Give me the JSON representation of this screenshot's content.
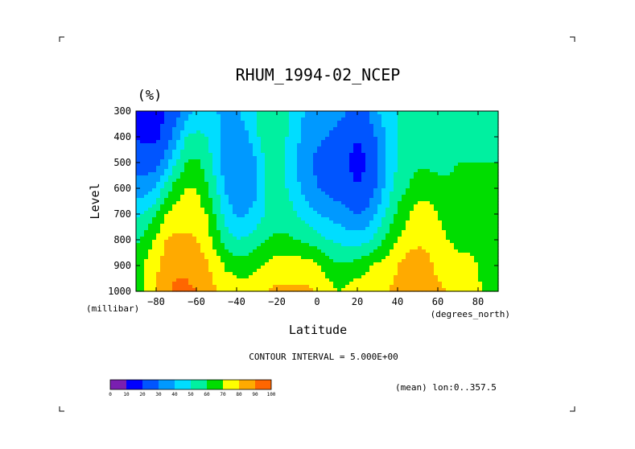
{
  "chart_data": {
    "type": "heatmap",
    "title": "RHUM_1994-02_NCEP",
    "units": "(%)",
    "xlabel": "Latitude",
    "xunits": "(degrees_north)",
    "ylabel": "Level",
    "yunits": "(millibar)",
    "xlim": [
      -90,
      90
    ],
    "ylim": [
      1000,
      300
    ],
    "x_ticks": [
      -80,
      -60,
      -40,
      -20,
      0,
      20,
      40,
      60,
      80
    ],
    "x_tick_labels": [
      "−80",
      "−60",
      "−40",
      "−20",
      "0",
      "20",
      "40",
      "60",
      "80"
    ],
    "y_ticks": [
      300,
      400,
      500,
      600,
      700,
      800,
      900,
      1000
    ],
    "y_tick_labels": [
      "300",
      "400",
      "500",
      "600",
      "700",
      "800",
      "900",
      "1000"
    ],
    "contour_interval_text": "CONTOUR INTERVAL = 5.000E+00",
    "footnote": "(mean) lon:0..357.5",
    "colorbar": {
      "boundaries": [
        0,
        10,
        20,
        30,
        40,
        50,
        60,
        70,
        80,
        90,
        100
      ],
      "labels": [
        "0",
        "10",
        "20",
        "30",
        "40",
        "50",
        "60",
        "70",
        "80",
        "90",
        "100"
      ],
      "colors": [
        "#7a1fb0",
        "#0000ff",
        "#0055ff",
        "#0099ff",
        "#00ddff",
        "#00f0a0",
        "#00dd00",
        "#ffff00",
        "#ffaa00",
        "#ff6600",
        "#ff0000"
      ]
    },
    "x": [
      -90,
      -85,
      -80,
      -75,
      -70,
      -65,
      -60,
      -55,
      -50,
      -45,
      -40,
      -35,
      -30,
      -25,
      -20,
      -15,
      -10,
      -5,
      0,
      5,
      10,
      15,
      20,
      25,
      30,
      35,
      40,
      45,
      50,
      55,
      60,
      65,
      70,
      75,
      80,
      85,
      90
    ],
    "levels": [
      300,
      400,
      500,
      600,
      700,
      800,
      900,
      1000
    ],
    "values": [
      [
        12,
        10,
        15,
        20,
        25,
        35,
        45,
        45,
        40,
        38,
        38,
        45,
        50,
        55,
        52,
        50,
        45,
        38,
        35,
        38,
        35,
        30,
        28,
        30,
        40,
        45,
        50,
        52,
        55,
        55,
        55,
        55,
        52,
        52,
        50,
        50,
        50
      ],
      [
        20,
        18,
        18,
        25,
        35,
        50,
        52,
        50,
        45,
        35,
        32,
        38,
        48,
        58,
        55,
        50,
        42,
        35,
        32,
        30,
        25,
        22,
        20,
        22,
        32,
        42,
        50,
        52,
        55,
        55,
        55,
        55,
        55,
        55,
        55,
        55,
        55
      ],
      [
        25,
        25,
        25,
        35,
        50,
        60,
        62,
        55,
        45,
        33,
        30,
        30,
        40,
        52,
        55,
        48,
        40,
        32,
        28,
        25,
        22,
        20,
        18,
        20,
        30,
        40,
        50,
        55,
        58,
        58,
        58,
        58,
        60,
        60,
        60,
        60,
        60
      ],
      [
        35,
        35,
        40,
        55,
        65,
        70,
        70,
        62,
        50,
        38,
        32,
        32,
        38,
        50,
        55,
        50,
        42,
        35,
        30,
        28,
        25,
        22,
        20,
        22,
        32,
        45,
        55,
        60,
        65,
        65,
        62,
        62,
        62,
        62,
        62,
        62,
        62
      ],
      [
        48,
        52,
        60,
        70,
        75,
        75,
        75,
        70,
        58,
        45,
        38,
        40,
        45,
        52,
        55,
        55,
        50,
        45,
        40,
        38,
        35,
        32,
        30,
        32,
        42,
        52,
        62,
        68,
        75,
        75,
        70,
        65,
        65,
        65,
        62,
        62,
        62
      ],
      [
        58,
        65,
        72,
        80,
        82,
        82,
        80,
        75,
        65,
        55,
        50,
        52,
        55,
        60,
        62,
        62,
        60,
        58,
        55,
        50,
        48,
        45,
        45,
        48,
        55,
        62,
        70,
        75,
        78,
        78,
        75,
        70,
        68,
        68,
        68,
        65,
        65
      ],
      [
        62,
        72,
        78,
        85,
        88,
        88,
        85,
        82,
        75,
        68,
        65,
        65,
        68,
        72,
        75,
        75,
        75,
        75,
        72,
        65,
        62,
        62,
        65,
        68,
        72,
        75,
        80,
        85,
        85,
        82,
        78,
        75,
        72,
        72,
        70,
        65,
        62
      ],
      [
        62,
        75,
        80,
        88,
        92,
        92,
        90,
        85,
        80,
        78,
        76,
        75,
        78,
        80,
        82,
        82,
        82,
        82,
        80,
        75,
        70,
        72,
        75,
        78,
        80,
        80,
        82,
        85,
        88,
        85,
        82,
        80,
        78,
        75,
        72,
        65,
        62
      ]
    ]
  }
}
